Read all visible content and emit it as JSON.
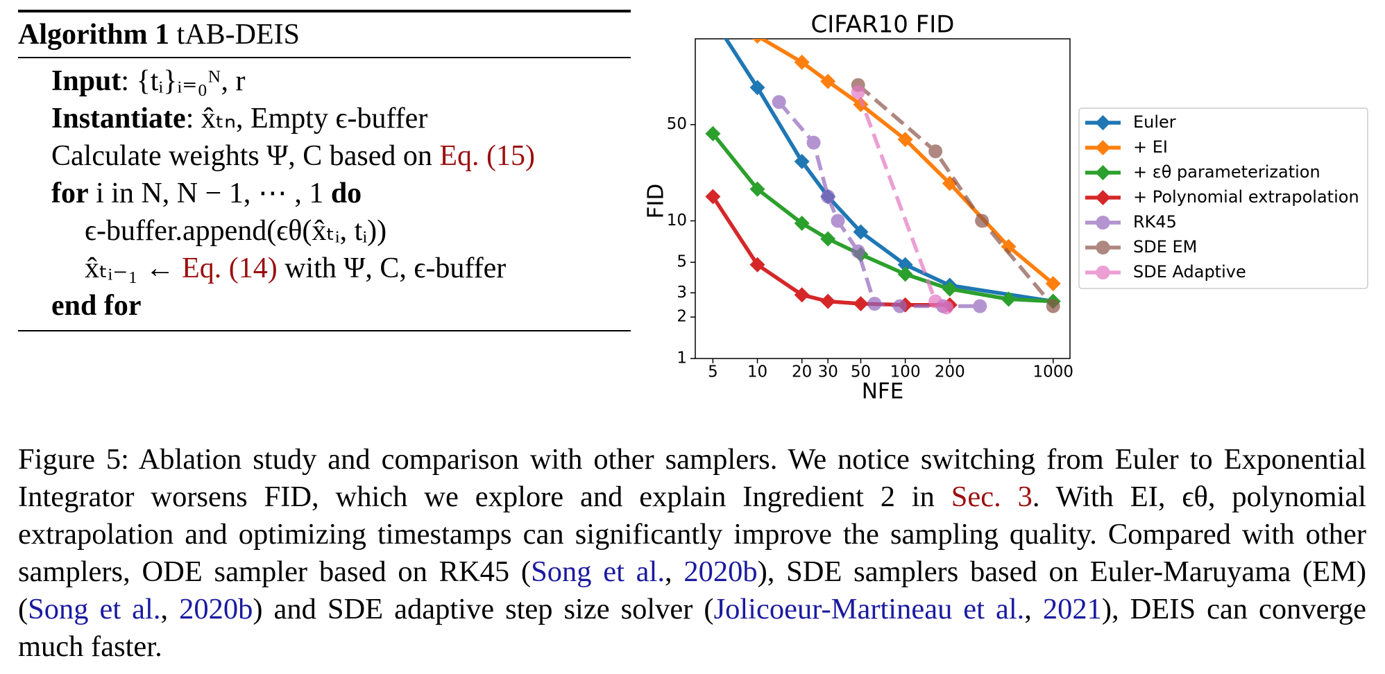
{
  "algorithm": {
    "title": [
      {
        "b": "Algorithm 1"
      },
      " tAB-DEIS"
    ],
    "lines": [
      [
        {
          "b": "Input"
        },
        ": {tᵢ}ᵢ₌₀ᴺ, r"
      ],
      [
        {
          "b": "Instantiate"
        },
        ": x̂ₜₙ, Empty ϵ-buffer"
      ],
      [
        "Calculate weights Ψ, C based on ",
        {
          "ref": "Eq. (15)"
        }
      ],
      [
        {
          "b": "for"
        },
        " i in N, N − 1, ⋯ , 1 ",
        {
          "b": "do"
        }
      ],
      [
        "ϵ-buffer.append(ϵθ(x̂ₜᵢ, tᵢ))"
      ],
      [
        "x̂ₜᵢ₋₁ ← ",
        {
          "ref": "Eq. (14)"
        },
        " with Ψ, C, ϵ-buffer"
      ],
      [
        {
          "b": "end for"
        }
      ]
    ]
  },
  "chart_data": {
    "type": "line",
    "title": "CIFAR10 FID",
    "x_label": "NFE",
    "y_label": "FID",
    "log_x": true,
    "log_y": true,
    "legend": "right",
    "xlim": [
      3.8,
      1300
    ],
    "xticks": [
      5,
      10,
      20,
      30,
      50,
      100,
      200,
      1000
    ],
    "ylim": [
      1,
      210
    ],
    "yticks": [
      1,
      2,
      3,
      5,
      10,
      50
    ],
    "series": [
      {
        "name": "Euler",
        "color": "#1f77b4",
        "marker": "diamond",
        "dashed": false,
        "x": [
          5,
          10,
          20,
          30,
          50,
          100,
          200,
          1000
        ],
        "values": [
          295,
          93,
          27,
          15,
          8.3,
          4.8,
          3.4,
          2.6
        ]
      },
      {
        "name": "+ EI",
        "color": "#ff7f0e",
        "marker": "diamond",
        "dashed": false,
        "x": [
          10,
          20,
          30,
          50,
          100,
          200,
          500,
          1000
        ],
        "values": [
          220,
          142,
          103,
          70,
          39,
          18.7,
          6.5,
          3.5
        ]
      },
      {
        "name": "+ εθ parameterization",
        "color": "#2ca02c",
        "marker": "diamond",
        "dashed": false,
        "x": [
          5,
          10,
          20,
          30,
          50,
          100,
          200,
          500,
          1000
        ],
        "values": [
          43,
          17,
          9.6,
          7.4,
          5.7,
          4.1,
          3.2,
          2.7,
          2.6
        ]
      },
      {
        "name": "+ Polynomial extrapolation",
        "color": "#d62728",
        "marker": "diamond",
        "dashed": false,
        "x": [
          5,
          10,
          20,
          30,
          50,
          100,
          200
        ],
        "values": [
          15,
          4.8,
          2.9,
          2.6,
          2.5,
          2.45,
          2.45
        ]
      },
      {
        "name": "RK45",
        "color": "#9467bd",
        "marker": "circle",
        "dashed": true,
        "x": [
          14,
          24,
          30,
          35,
          48,
          62,
          92,
          180,
          320
        ],
        "values": [
          73,
          37,
          15,
          10,
          6,
          2.5,
          2.4,
          2.4,
          2.4
        ]
      },
      {
        "name": "SDE EM",
        "color": "#8c564b",
        "marker": "circle",
        "dashed": true,
        "x": [
          48,
          160,
          330,
          1000
        ],
        "values": [
          97,
          32,
          10,
          2.4
        ]
      },
      {
        "name": "SDE Adaptive",
        "color": "#e377c2",
        "marker": "circle",
        "dashed": true,
        "x": [
          48,
          160,
          190
        ],
        "values": [
          86,
          2.6,
          2.35
        ]
      }
    ]
  },
  "caption": [
    "Figure 5:  Ablation study and comparison with other samplers.  We notice switching from Euler to Exponential Integrator worsens FID, which we explore and explain Ingredient 2 in ",
    {
      "ref": "Sec. 3"
    },
    ". With EI, ϵθ, polynomial extrapolation and optimizing timestamps can significantly improve the sampling quality.  Compared with other samplers, ODE sampler based on RK45 (",
    {
      "cite": "Song et al."
    },
    ", ",
    {
      "cite": "2020b"
    },
    "), SDE samplers based on Euler-Maruyama (EM) (",
    {
      "cite": "Song et al."
    },
    ", ",
    {
      "cite": "2020b"
    },
    ") and SDE adaptive step size solver (",
    {
      "cite": "Jolicoeur-Martineau et al."
    },
    ", ",
    {
      "cite": "2021"
    },
    "), DEIS can converge much faster."
  ]
}
